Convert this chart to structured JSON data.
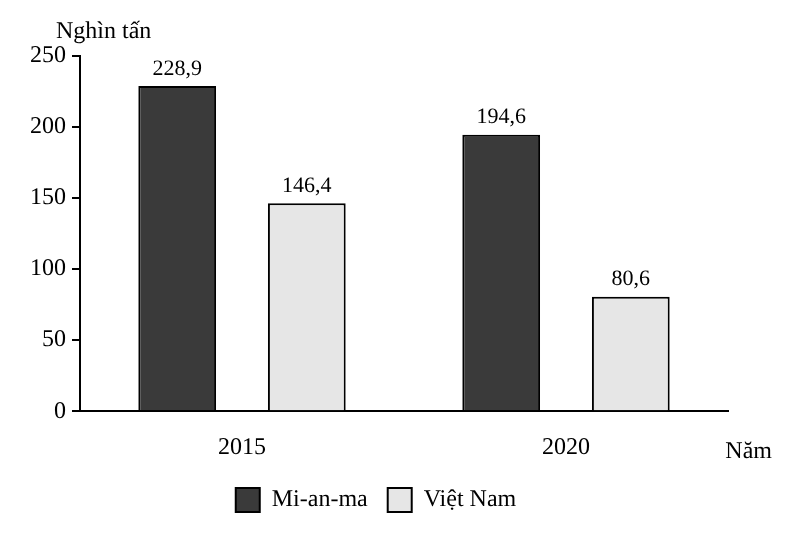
{
  "chart_data": {
    "type": "bar",
    "xlabel": "Năm",
    "ylabel": "Nghìn tấn",
    "categories": [
      "2015",
      "2020"
    ],
    "series": [
      {
        "name": "Mi-an-ma",
        "color": "#3a3a3a",
        "values": [
          228.9,
          194.6
        ],
        "value_labels": [
          "228,9",
          "194,6"
        ]
      },
      {
        "name": "Việt Nam",
        "color": "#e6e6e6",
        "values": [
          146.4,
          80.6
        ],
        "value_labels": [
          "146,4",
          "80,6"
        ]
      }
    ],
    "ylim": [
      0,
      250
    ],
    "yticks": [
      0,
      50,
      100,
      150,
      200,
      250
    ],
    "grid": false,
    "legend": "bottom"
  }
}
